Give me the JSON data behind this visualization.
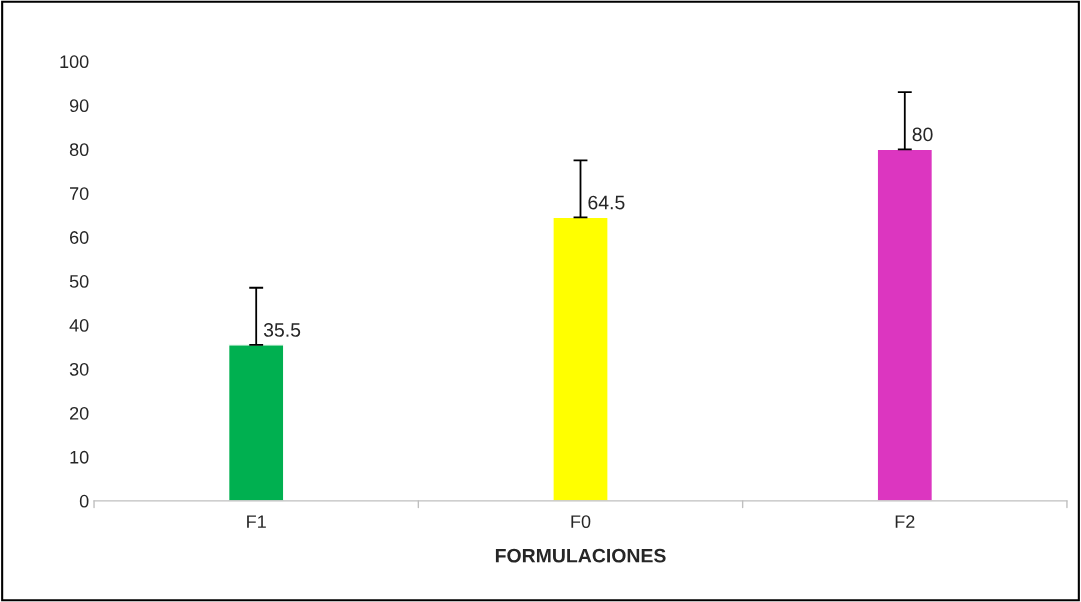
{
  "chart_data": {
    "type": "bar",
    "xlabel": "FORMULACIONES",
    "categories": [
      "F1",
      "F0",
      "F2"
    ],
    "values": [
      35.5,
      64.5,
      80
    ],
    "colors": [
      "#00b050",
      "#ffff00",
      "#dc36c0"
    ],
    "errors": [
      [
        35.5,
        48.5
      ],
      [
        64.5,
        77.5
      ],
      [
        80,
        93
      ]
    ],
    "ylim": [
      0,
      100
    ],
    "yticks": [
      0,
      10,
      20,
      30,
      40,
      50,
      60,
      70,
      80,
      90,
      100
    ],
    "grid": false,
    "legend": false,
    "data_labels": true
  }
}
